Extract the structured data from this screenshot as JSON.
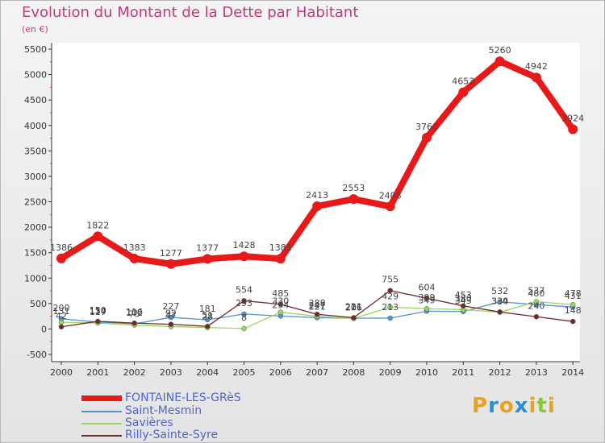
{
  "header": {
    "title": "Evolution du Montant de la Dette par Habitant",
    "unit": "(en €)"
  },
  "legend": [
    {
      "label": "FONTAINE-LES-GRèS"
    },
    {
      "label": "Saint-Mesmin"
    },
    {
      "label": "Savières"
    },
    {
      "label": "Rilly-Sainte-Syre"
    }
  ],
  "logo": {
    "letters": [
      "P",
      "r",
      "o",
      "x",
      "i",
      "t",
      "i"
    ],
    "colors": [
      "#e9a21f",
      "#2a8fd0",
      "#e9a21f",
      "#2a8fd0",
      "#e9a21f",
      "#8cc63f",
      "#e9a21f"
    ]
  },
  "chart_data": {
    "type": "line",
    "title": "Evolution du Montant de la Dette par Habitant",
    "subtitle": "(en €)",
    "x": [
      "2000",
      "2001",
      "2002",
      "2003",
      "2004",
      "2005",
      "2006",
      "2007",
      "2008",
      "2009",
      "2010",
      "2011",
      "2012",
      "2013",
      "2014"
    ],
    "yticks": [
      -500,
      0,
      500,
      1000,
      1500,
      2000,
      2500,
      3000,
      3500,
      4000,
      4500,
      5000,
      5500
    ],
    "ylim": [
      -500,
      5500
    ],
    "grid": false,
    "legend_position": "bottom-left",
    "series": [
      {
        "name": "FONTAINE-LES-GRèS",
        "color": "#e81919",
        "values": [
          1386,
          1822,
          1383,
          1277,
          1377,
          1428,
          1381,
          2413,
          2553,
          2408,
          3760,
          4653,
          5260,
          4942,
          3924
        ],
        "labels": [
          "1386",
          "1822",
          "1383",
          "1277",
          "1377",
          "1428",
          "1381",
          "2413",
          "2553",
          "2408",
          "3760",
          "4653",
          "5260",
          "4942",
          "3924"
        ]
      },
      {
        "name": "Saint-Mesmin",
        "color": "#4f95d0",
        "values": [
          200,
          134,
          102,
          227,
          181,
          293,
          254,
          221,
          211,
          213,
          349,
          343,
          532,
          480,
          431
        ],
        "labels": [
          "200",
          "134",
          "102",
          "227",
          "181",
          "293",
          "254",
          "221",
          "211",
          "213",
          "349",
          "343",
          "532",
          "480",
          "431"
        ]
      },
      {
        "name": "Savières",
        "color": "#9ad65e",
        "values": [
          131,
          117,
          75,
          47,
          28,
          8,
          330,
          247,
          206,
          429,
          399,
          380,
          330,
          537,
          478
        ],
        "labels": [
          "131",
          "117",
          "75",
          "47",
          "28",
          "8",
          "330",
          "247",
          "206",
          "429",
          "399",
          "380",
          "330",
          "537",
          "478"
        ]
      },
      {
        "name": "Rilly-Sainte-Syre",
        "color": "#702a2a",
        "values": [
          42,
          150,
          116,
          92,
          51,
          554,
          485,
          288,
          221,
          755,
          604,
          453,
          334,
          240,
          148
        ],
        "labels": [
          "42",
          "150",
          "116",
          "92",
          "51",
          "554",
          "485",
          "288",
          "221",
          "755",
          "604",
          "453",
          "334",
          "240",
          "148"
        ]
      }
    ]
  }
}
